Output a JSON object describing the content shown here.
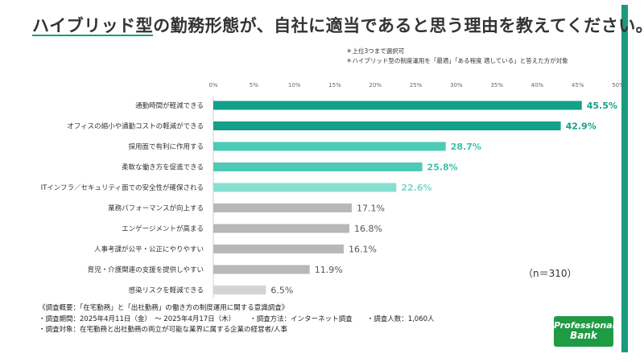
{
  "title": {
    "underlined": "ハイブリッド型",
    "rest": "の勤務形態が、自社に適当であると思う理由を教えてください。"
  },
  "notes": [
    "＊上位3つまで選択可",
    "＊ハイブリッド型の制度運用を「最適」「ある程度 適している」と答えた方が対象"
  ],
  "n_label": "（n＝310）",
  "chart_data": {
    "type": "bar",
    "orientation": "horizontal",
    "axis_ticks": [
      "0%",
      "5%",
      "10%",
      "15%",
      "20%",
      "25%",
      "30%",
      "35%",
      "40%",
      "45%",
      "50%"
    ],
    "xlim": [
      0,
      50
    ],
    "categories": [
      "通勤時間が軽減できる",
      "オフィスの縮小や通勤コストの軽減ができる",
      "採用面で有利に作用する",
      "柔軟な働き方を促進できる",
      "ITインフラ／セキュリティ面での安全性が確保される",
      "業務パフォーマンスが向上する",
      "エンゲージメントが高まる",
      "人事考課が公平・公正にやりやすい",
      "育児・介護関連の支援を提供しやすい",
      "感染リスクを軽減できる"
    ],
    "values": [
      45.5,
      42.9,
      28.7,
      25.8,
      22.6,
      17.1,
      16.8,
      16.1,
      11.9,
      6.5
    ],
    "value_labels": [
      "45.5%",
      "42.9%",
      "28.7%",
      "25.8%",
      "22.6%",
      "17.1%",
      "16.8%",
      "16.1%",
      "11.9%",
      "6.5%"
    ],
    "bar_colors": [
      "#12a08a",
      "#12a08a",
      "#4ccab5",
      "#4ccab5",
      "#86e0d0",
      "#b8b8b8",
      "#b8b8b8",
      "#b8b8b8",
      "#b8b8b8",
      "#d4d4d4"
    ],
    "label_colors": [
      "#12a08a",
      "#12a08a",
      "#3fbfaa",
      "#3fbfaa",
      "#7fd8c8",
      "#555555",
      "#555555",
      "#555555",
      "#555555",
      "#555555"
    ]
  },
  "survey": {
    "heading": "《調査概要：「在宅勤務」と「出社勤務」の働き方の制度運用に関する意識調査》",
    "period": "・調査期間：2025年4月11日（金）　～ 2025年4月17日（木）",
    "method": "・調査方法：インターネット調査",
    "count": "・調査人数：1,060人",
    "target": "・調査対象：在宅勤務と出社勤務の両立が可能な業界に属する企業の経営者/人事"
  },
  "logo": {
    "line1": "Professional",
    "line2": "Bank",
    "color": "#1f9a45"
  }
}
